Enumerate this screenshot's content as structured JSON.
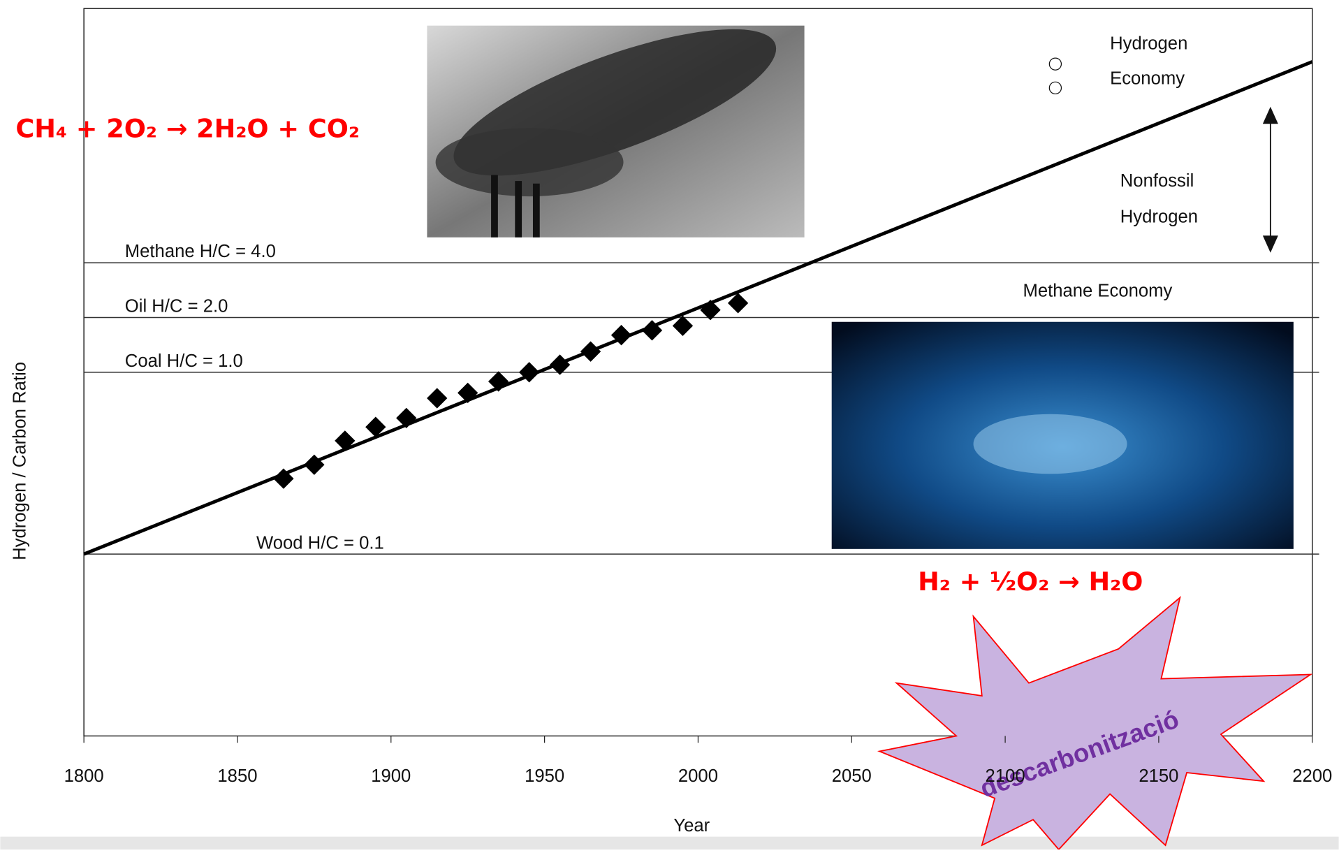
{
  "chart_data": {
    "type": "scatter",
    "y_axis_label": "Hydrogen / Carbon Ratio",
    "x_axis_label": "Year",
    "log_y": true,
    "xlim": [
      1800,
      2200
    ],
    "xticks": [
      1800,
      1850,
      1900,
      1950,
      2000,
      2050,
      2100,
      2150,
      2200
    ],
    "ylim": [
      0.01,
      100
    ],
    "color": "#000000",
    "x": [
      1865,
      1875,
      1885,
      1895,
      1905,
      1915,
      1925,
      1935,
      1945,
      1955,
      1965,
      1975,
      1985,
      1995,
      2004,
      2013
    ],
    "values": [
      0.26,
      0.31,
      0.42,
      0.5,
      0.56,
      0.72,
      0.77,
      0.89,
      1.0,
      1.1,
      1.3,
      1.6,
      1.7,
      1.8,
      2.2,
      2.4
    ],
    "trend": {
      "x": [
        1800,
        2200
      ],
      "values": [
        0.1,
        51
      ]
    },
    "reference_lines": [
      {
        "label": "Methane H/C = 4.0",
        "value": 4.0
      },
      {
        "label": "Oil H/C  = 2.0",
        "value": 2.0
      },
      {
        "label": "Coal H/C = 1.0",
        "value": 1.0
      },
      {
        "label": "Wood H/C = 0.1",
        "value": 0.1
      }
    ],
    "annotations": {
      "hydrogen": "Hydrogen",
      "economy": "Economy",
      "nonfossil": "Nonfossil",
      "nonfossil_hydrogen": "Hydrogen",
      "methane_economy": "Methane Economy"
    },
    "equation_methane": "CH₄ + 2O₂ → 2H₂O + CO₂",
    "equation_hydrogen": "H₂ + ½O₂ → H₂O",
    "badge": "descarbonització"
  }
}
